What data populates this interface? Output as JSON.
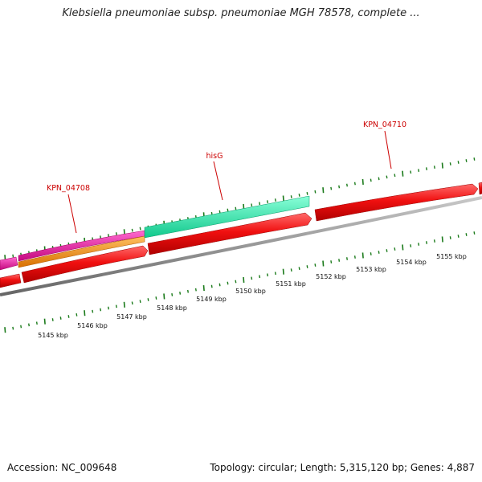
{
  "title": "Klebsiella pneumoniae subsp. pneumoniae MGH 78578, complete ...",
  "footer": {
    "accession": "Accession: NC_009648",
    "summary": "Topology: circular; Length: 5,315,120 bp; Genes: 4,887"
  },
  "gene_labels": [
    {
      "name": "KPN_04708"
    },
    {
      "name": "hisG"
    },
    {
      "name": "KPN_04710"
    }
  ],
  "kbp_labels": [
    "5145 kbp",
    "5146 kbp",
    "5147 kbp",
    "5148 kbp",
    "5149 kbp",
    "5150 kbp",
    "5151 kbp",
    "5152 kbp",
    "5153 kbp",
    "5154 kbp",
    "5155 kbp"
  ],
  "colors": {
    "forward_cds": "#e8121b",
    "misc_feature_magenta": "#e6169c",
    "misc_feature_orange": "#f0900c",
    "gene_aqua": "#1ee8a6",
    "tick_green": "#1a7a1a",
    "backbone_grey": "#8a8a8a",
    "label_red": "#cc0000"
  }
}
